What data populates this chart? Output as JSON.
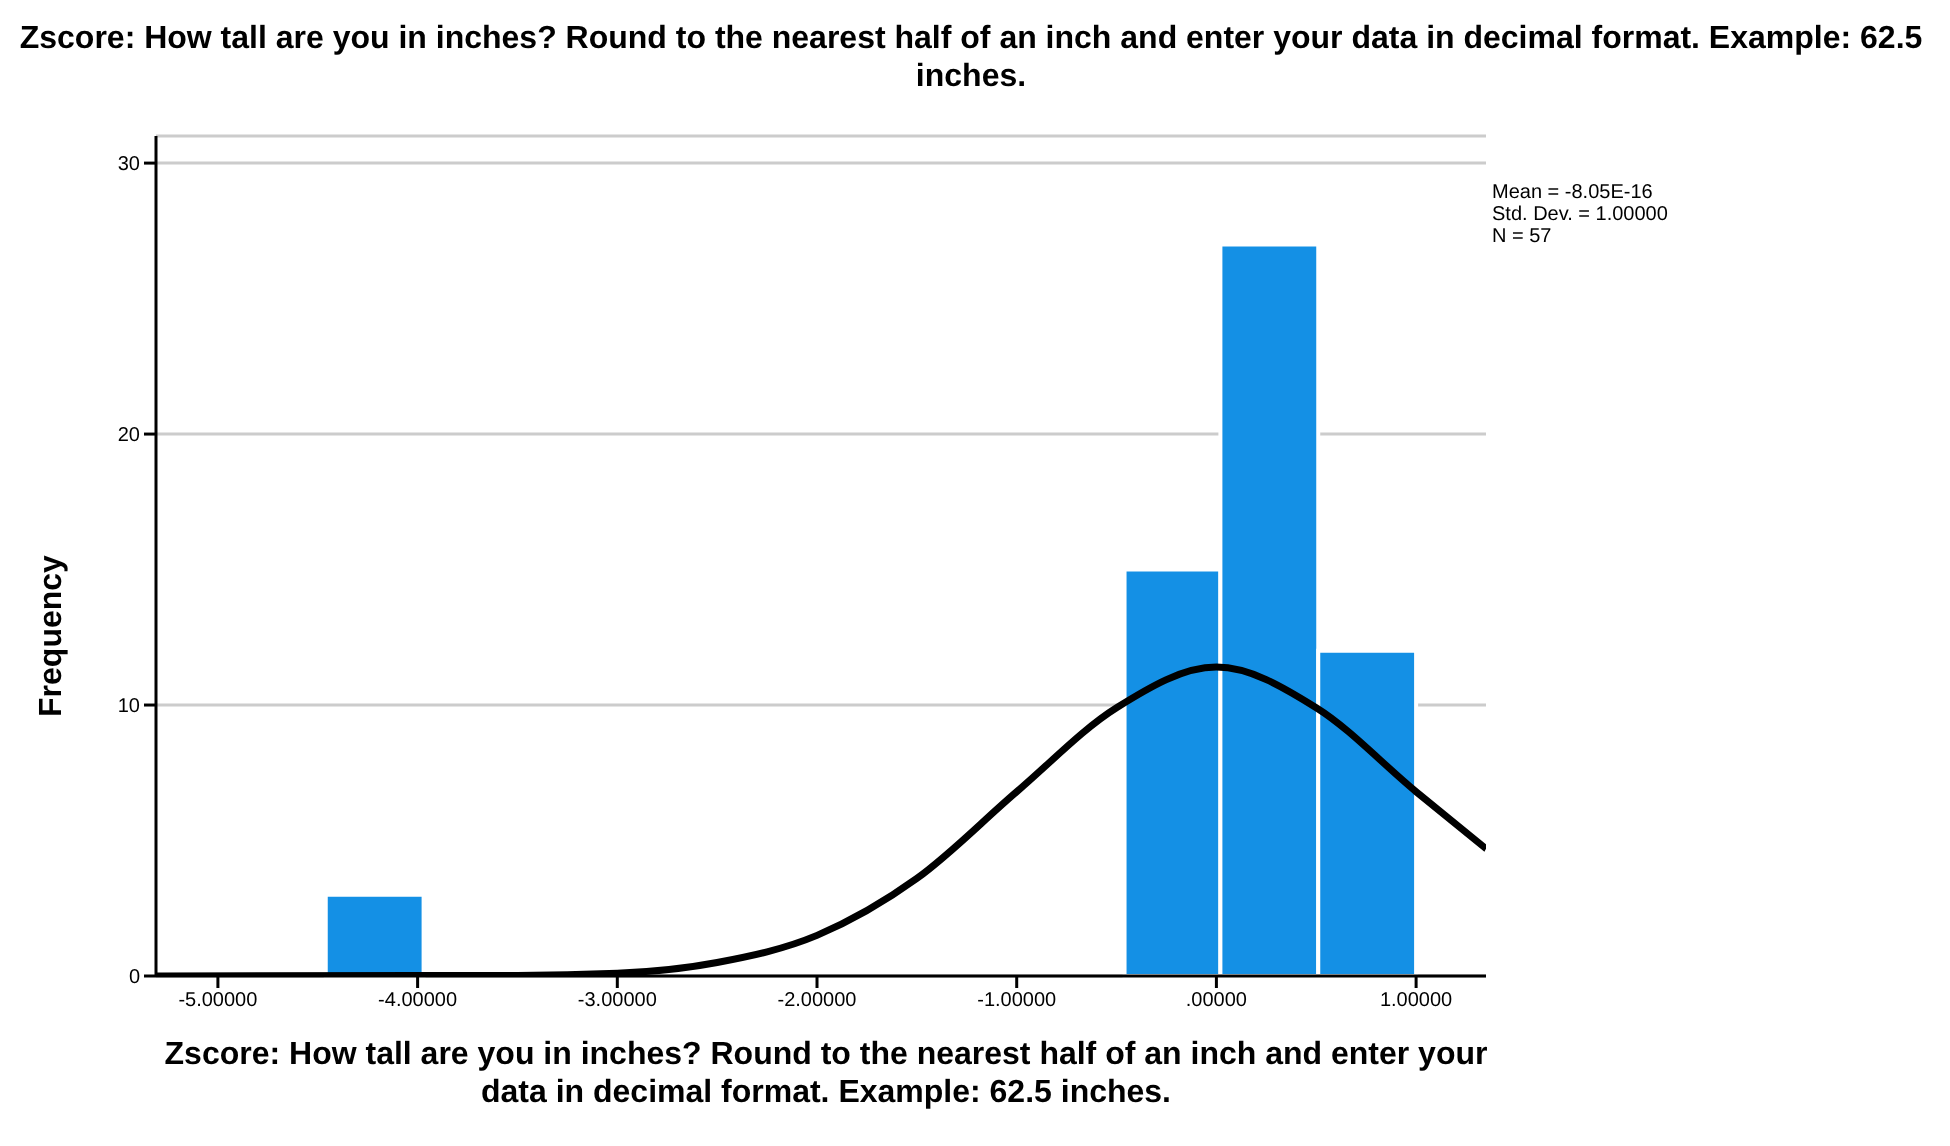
{
  "chart_data": {
    "type": "histogram",
    "title": "Zscore:  How tall are you in inches? Round to the nearest half of an inch and enter your data in decimal format. Example: 62.5 inches.",
    "xlabel": "Zscore:  How tall are you in inches? Round to the nearest half of an inch and enter your data in decimal format. Example: 62.5 inches.",
    "ylabel": "Frequency",
    "bins": [
      -4.46,
      -3.97,
      -0.46,
      0.02,
      0.51,
      1.0
    ],
    "values": [
      3,
      0,
      15,
      27,
      12
    ],
    "color": "#1490e5",
    "series": [
      {
        "type": "line",
        "color": "#000000",
        "x": [
          -5.31,
          -4,
          -3.5,
          -3,
          -2.5,
          -2,
          -1.5,
          -1,
          -0.5,
          0,
          0.5,
          1,
          1.35
        ],
        "values": [
          0,
          0.02,
          0.02,
          0.1,
          0.5,
          1.5,
          3.6,
          6.8,
          9.9,
          11.4,
          9.9,
          6.8,
          4.7
        ]
      }
    ],
    "xlim": [
      -5.31,
      1.35
    ],
    "xticks": [
      {
        "value": -5,
        "label": "-5.00000"
      },
      {
        "value": -4,
        "label": "-4.00000"
      },
      {
        "value": -3,
        "label": "-3.00000"
      },
      {
        "value": -2,
        "label": "-2.00000"
      },
      {
        "value": -1,
        "label": "-1.00000"
      },
      {
        "value": 0,
        "label": ".00000"
      },
      {
        "value": 1,
        "label": "1.00000"
      }
    ],
    "ylim": [
      0,
      31
    ],
    "yticks": [
      0,
      10,
      20,
      30
    ],
    "grid": "y",
    "annotations": [
      "Mean = -8.05E-16",
      "Std. Dev. = 1.00000",
      "N = 57"
    ]
  }
}
